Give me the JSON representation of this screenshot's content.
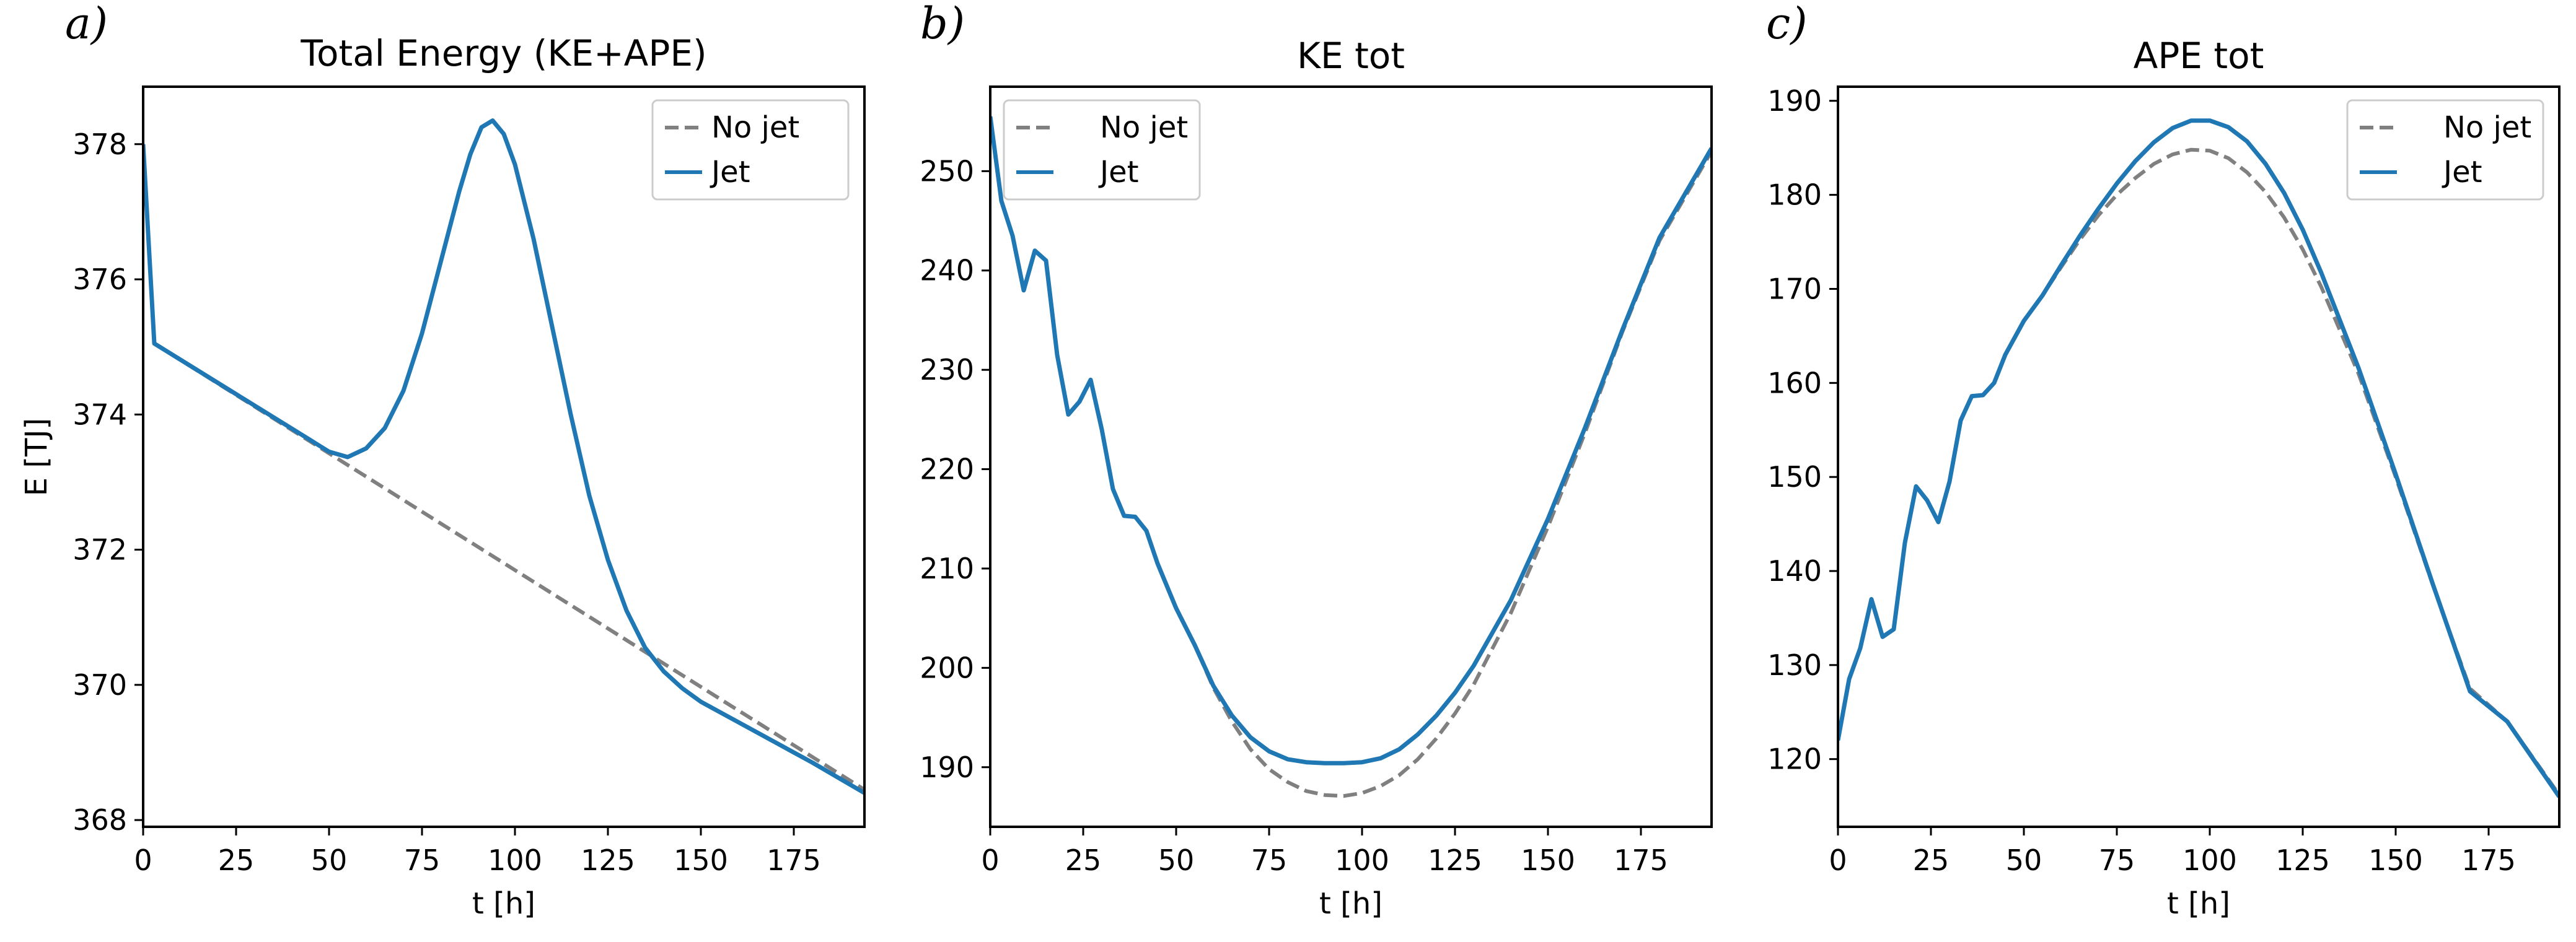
{
  "figure": {
    "colors": {
      "no_jet": "#808080",
      "jet": "#1f77b4",
      "axes": "#000000",
      "legend_border": "#cccccc"
    }
  },
  "chart_data": [
    {
      "type": "line",
      "panel_label": "a)",
      "title": "Total Energy (KE+APE)",
      "xlabel": "t [h]",
      "ylabel": "E [TJ]",
      "xlim": [
        0,
        194
      ],
      "ylim": [
        367.9,
        378.85
      ],
      "xticks": [
        0,
        25,
        50,
        75,
        100,
        125,
        150,
        175
      ],
      "yticks": [
        368,
        370,
        372,
        374,
        376,
        378
      ],
      "grid": false,
      "legend_position": "upper right",
      "series": [
        {
          "name": "No jet",
          "style": "dashed",
          "x": [
            0,
            3,
            194
          ],
          "y": [
            378.0,
            375.05,
            368.45
          ]
        },
        {
          "name": "Jet",
          "style": "solid",
          "x": [
            0,
            3,
            50,
            55,
            60,
            65,
            70,
            75,
            80,
            85,
            88,
            91,
            94,
            97,
            100,
            105,
            110,
            115,
            120,
            125,
            130,
            135,
            140,
            145,
            150,
            160,
            170,
            180,
            194
          ],
          "y": [
            378.0,
            375.05,
            373.45,
            373.37,
            373.5,
            373.8,
            374.35,
            375.2,
            376.25,
            377.3,
            377.85,
            378.25,
            378.35,
            378.15,
            377.7,
            376.6,
            375.3,
            374.0,
            372.8,
            371.85,
            371.1,
            370.55,
            370.2,
            369.95,
            369.75,
            369.45,
            369.15,
            368.85,
            368.4
          ]
        }
      ]
    },
    {
      "type": "line",
      "panel_label": "b)",
      "title": "KE tot",
      "xlabel": "t [h]",
      "ylabel": "",
      "xlim": [
        0,
        194
      ],
      "ylim": [
        184,
        258.5
      ],
      "xticks": [
        0,
        25,
        50,
        75,
        100,
        125,
        150,
        175
      ],
      "yticks": [
        190,
        200,
        210,
        220,
        230,
        240,
        250
      ],
      "grid": false,
      "legend_position": "upper left",
      "series": [
        {
          "name": "No jet",
          "style": "dashed",
          "x": [
            0,
            3,
            6,
            9,
            12,
            15,
            18,
            21,
            24,
            27,
            30,
            33,
            36,
            39,
            42,
            45,
            50,
            55,
            60,
            65,
            70,
            75,
            80,
            85,
            90,
            95,
            100,
            105,
            110,
            115,
            120,
            125,
            130,
            140,
            150,
            160,
            170,
            180,
            194
          ],
          "y": [
            255.5,
            247.0,
            243.5,
            238.0,
            242.0,
            241.0,
            231.5,
            225.5,
            226.8,
            229.0,
            224.0,
            218.0,
            215.3,
            215.2,
            213.8,
            210.5,
            206.0,
            202.3,
            198.0,
            194.6,
            191.8,
            189.8,
            188.5,
            187.6,
            187.2,
            187.1,
            187.4,
            188.1,
            189.2,
            190.8,
            192.9,
            195.4,
            198.3,
            205.5,
            214.2,
            223.7,
            233.8,
            243.0,
            252.0
          ]
        },
        {
          "name": "Jet",
          "style": "solid",
          "x": [
            0,
            3,
            6,
            9,
            12,
            15,
            18,
            21,
            24,
            27,
            30,
            33,
            36,
            39,
            42,
            45,
            50,
            55,
            60,
            65,
            70,
            75,
            80,
            85,
            90,
            95,
            100,
            105,
            110,
            115,
            120,
            125,
            130,
            140,
            150,
            160,
            170,
            180,
            194
          ],
          "y": [
            255.5,
            247.0,
            243.5,
            238.0,
            242.0,
            241.0,
            231.5,
            225.5,
            226.8,
            229.0,
            224.0,
            218.0,
            215.3,
            215.2,
            213.8,
            210.5,
            206.0,
            202.3,
            198.2,
            195.2,
            193.0,
            191.6,
            190.8,
            190.5,
            190.4,
            190.4,
            190.5,
            190.9,
            191.8,
            193.3,
            195.2,
            197.5,
            200.2,
            206.8,
            215.0,
            224.2,
            234.0,
            243.3,
            252.3
          ]
        }
      ]
    },
    {
      "type": "line",
      "panel_label": "c)",
      "title": "APE tot",
      "xlabel": "t [h]",
      "ylabel": "",
      "xlim": [
        0,
        194
      ],
      "ylim": [
        112.8,
        191.5
      ],
      "xticks": [
        0,
        25,
        50,
        75,
        100,
        125,
        150,
        175
      ],
      "yticks": [
        120,
        130,
        140,
        150,
        160,
        170,
        180,
        190
      ],
      "grid": false,
      "legend_position": "upper right",
      "series": [
        {
          "name": "No jet",
          "style": "dashed",
          "x": [
            0,
            3,
            6,
            9,
            12,
            15,
            18,
            21,
            24,
            27,
            30,
            33,
            36,
            39,
            42,
            45,
            50,
            55,
            60,
            65,
            70,
            75,
            80,
            85,
            90,
            95,
            100,
            105,
            110,
            115,
            120,
            125,
            130,
            140,
            150,
            160,
            170,
            180,
            194
          ],
          "y": [
            122.0,
            128.5,
            131.8,
            137.0,
            133.0,
            133.8,
            143.0,
            149.0,
            147.5,
            145.2,
            149.5,
            156.0,
            158.6,
            158.7,
            160.0,
            163.0,
            166.6,
            169.3,
            172.3,
            175.2,
            177.8,
            180.0,
            181.8,
            183.3,
            184.3,
            184.8,
            184.7,
            183.9,
            182.4,
            180.3,
            177.6,
            174.2,
            170.2,
            161.0,
            150.0,
            138.5,
            127.5,
            124.0,
            116.2
          ]
        },
        {
          "name": "Jet",
          "style": "solid",
          "x": [
            0,
            3,
            6,
            9,
            12,
            15,
            18,
            21,
            24,
            27,
            30,
            33,
            36,
            39,
            42,
            45,
            50,
            55,
            60,
            65,
            70,
            75,
            80,
            85,
            90,
            95,
            100,
            105,
            110,
            115,
            120,
            125,
            130,
            140,
            150,
            160,
            170,
            180,
            194
          ],
          "y": [
            122.0,
            128.5,
            131.8,
            137.0,
            133.0,
            133.8,
            143.0,
            149.0,
            147.5,
            145.2,
            149.5,
            156.0,
            158.6,
            158.7,
            160.0,
            163.0,
            166.6,
            169.3,
            172.5,
            175.6,
            178.5,
            181.2,
            183.6,
            185.6,
            187.1,
            187.9,
            187.9,
            187.2,
            185.7,
            183.3,
            180.2,
            176.3,
            171.7,
            161.6,
            150.3,
            138.6,
            127.2,
            124.0,
            116.0
          ]
        }
      ]
    }
  ]
}
